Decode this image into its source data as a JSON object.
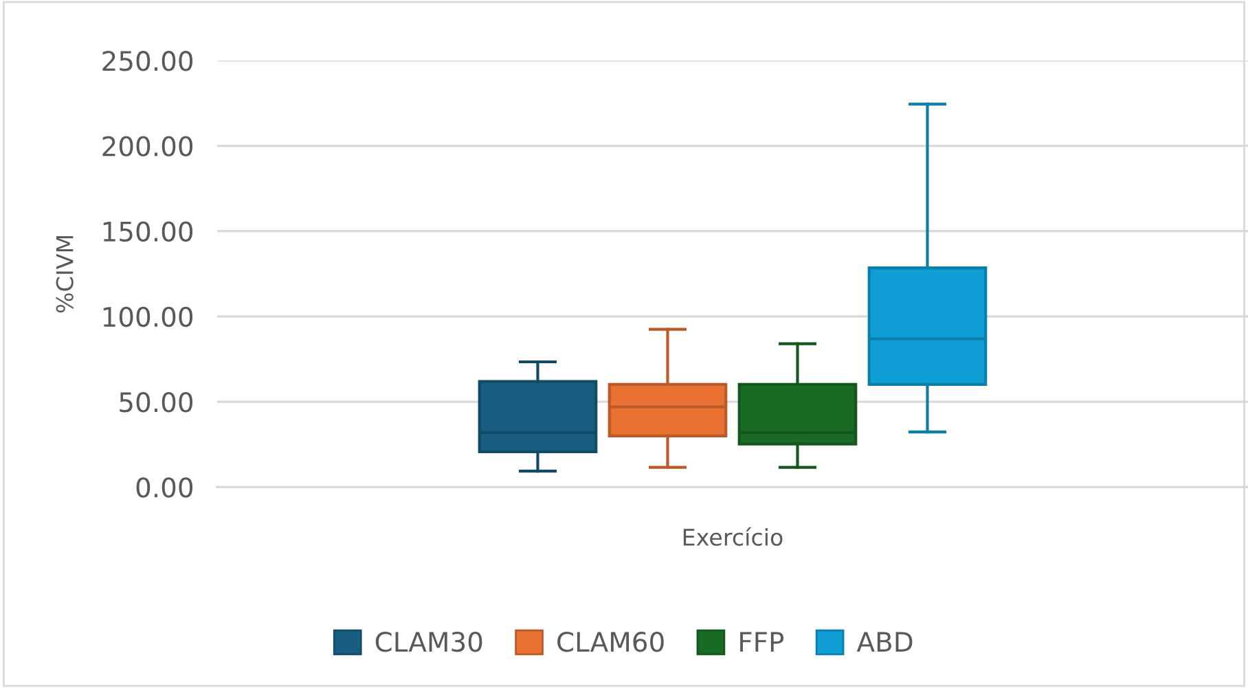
{
  "chart_data": {
    "type": "box",
    "xlabel": "Exercício",
    "ylabel": "%CIVM",
    "categories": [
      null
    ],
    "series": [
      {
        "name": "CLAM30",
        "color": "#175e80",
        "boxes": [
          {
            "low": 9.4,
            "q1": 20.7,
            "median": 32,
            "q3": 61.9,
            "high": 73.4
          }
        ]
      },
      {
        "name": "CLAM60",
        "color": "#e97132",
        "boxes": [
          {
            "low": 11.6,
            "q1": 30,
            "median": 47,
            "q3": 60.2,
            "high": 92.5
          }
        ]
      },
      {
        "name": "FFP",
        "color": "#196b24",
        "boxes": [
          {
            "low": 11.6,
            "q1": 25.3,
            "median": 32,
            "q3": 60.2,
            "high": 84
          }
        ]
      },
      {
        "name": "ABD",
        "color": "#0f9ed5",
        "boxes": [
          {
            "low": 32.3,
            "q1": 60.2,
            "median": 86.9,
            "q3": 128.5,
            "high": 224.5
          }
        ]
      }
    ],
    "ylim": [
      0,
      250
    ],
    "yticks": [
      {
        "value": 0,
        "label": "0.00"
      },
      {
        "value": 50,
        "label": "50.00"
      },
      {
        "value": 100,
        "label": "100.00"
      },
      {
        "value": 150,
        "label": "150.00"
      },
      {
        "value": 200,
        "label": "200.00"
      },
      {
        "value": 250,
        "label": "250.00"
      }
    ],
    "grid": "y",
    "legend": "bottom"
  }
}
